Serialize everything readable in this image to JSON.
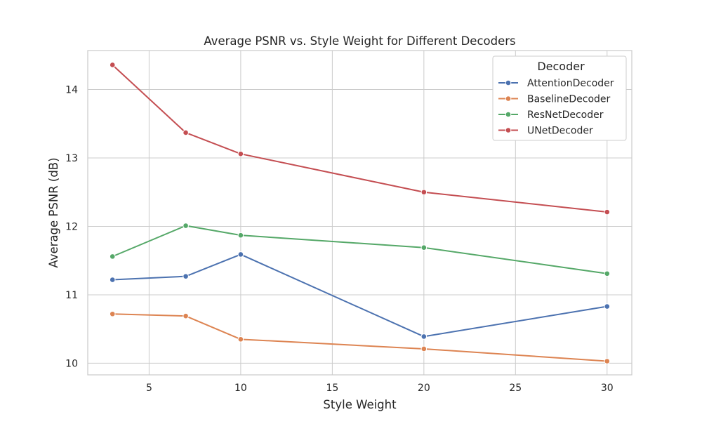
{
  "chart_data": {
    "type": "line",
    "title": "Average PSNR vs. Style Weight for Different Decoders",
    "xlabel": "Style Weight",
    "ylabel": "Average PSNR (dB)",
    "x": [
      3,
      7,
      10,
      20,
      30
    ],
    "xlim": [
      1.65,
      31.35
    ],
    "ylim": [
      9.83,
      14.57
    ],
    "xticks": [
      5,
      10,
      15,
      20,
      25,
      30
    ],
    "yticks": [
      10,
      11,
      12,
      13,
      14
    ],
    "grid": true,
    "legend": {
      "title": "Decoder",
      "placement": "top-right"
    },
    "series": [
      {
        "name": "AttentionDecoder",
        "color": "#4c72b0",
        "values": [
          11.22,
          11.27,
          11.59,
          10.39,
          10.83
        ]
      },
      {
        "name": "BaselineDecoder",
        "color": "#dd8452",
        "values": [
          10.72,
          10.69,
          10.35,
          10.21,
          10.03
        ]
      },
      {
        "name": "ResNetDecoder",
        "color": "#55a868",
        "values": [
          11.56,
          12.01,
          11.87,
          11.69,
          11.31
        ]
      },
      {
        "name": "UNetDecoder",
        "color": "#c44e52",
        "values": [
          14.36,
          13.37,
          13.06,
          12.5,
          12.21
        ]
      }
    ]
  }
}
